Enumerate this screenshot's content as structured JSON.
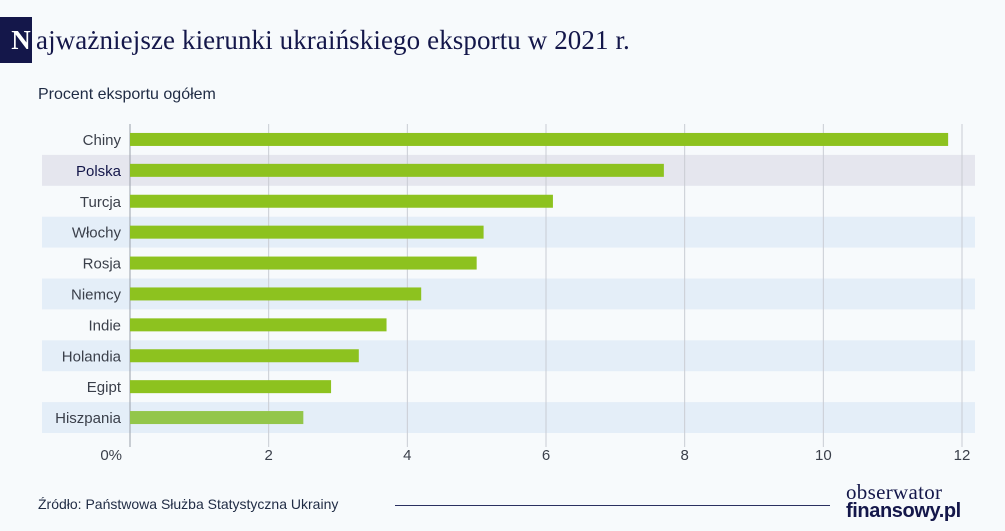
{
  "title": "ajważniejsze kierunki ukraińskiego eksportu w 2021 r.",
  "title_initial": "N",
  "subtitle": "Procent eksportu ogółem",
  "footer": {
    "source": "Źródło: Państwowa Służba Statystyczna Ukrainy",
    "logo_line1": "obserwator",
    "logo_line2": "finansowy.pl"
  },
  "colors": {
    "bar": "#8dc21f",
    "bar_last": "#93c64a",
    "highlight_row": "#e5e6ee",
    "band_row": "#e4eef8",
    "title": "#14174a"
  },
  "chart_data": {
    "type": "bar",
    "orientation": "horizontal",
    "categories": [
      "Chiny",
      "Polska",
      "Turcja",
      "Włochy",
      "Rosja",
      "Niemcy",
      "Indie",
      "Holandia",
      "Egipt",
      "Hiszpania"
    ],
    "values": [
      11.8,
      7.7,
      6.1,
      5.1,
      5.0,
      4.2,
      3.7,
      3.3,
      2.9,
      2.5
    ],
    "highlighted_category": "Polska",
    "xlim": [
      0,
      12
    ],
    "xticks": [
      {
        "value": 0,
        "label": "0%"
      },
      {
        "value": 2,
        "label": "2"
      },
      {
        "value": 4,
        "label": "4"
      },
      {
        "value": 6,
        "label": "6"
      },
      {
        "value": 8,
        "label": "8"
      },
      {
        "value": 10,
        "label": "10"
      },
      {
        "value": 12,
        "label": "12"
      }
    ],
    "grid": "vertical",
    "legend": "none"
  }
}
